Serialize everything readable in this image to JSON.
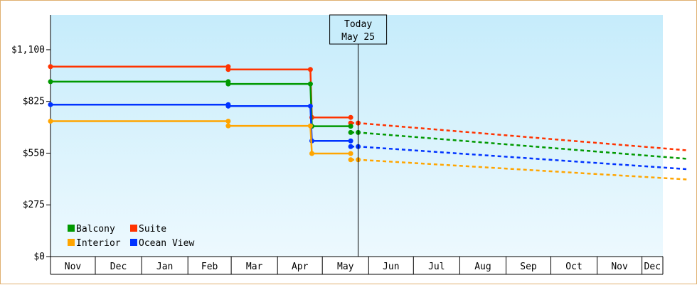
{
  "chart_data": {
    "type": "line",
    "title": "",
    "xlabel": "",
    "ylabel": "",
    "ylim": [
      0,
      1285
    ],
    "yticks": [
      {
        "value": 0,
        "label": "$0"
      },
      {
        "value": 275,
        "label": "$275"
      },
      {
        "value": 550,
        "label": "$550"
      },
      {
        "value": 825,
        "label": "$825"
      },
      {
        "value": 1100,
        "label": "$1,100"
      }
    ],
    "x_axis_months": [
      "Nov",
      "Dec",
      "Jan",
      "Feb",
      "Mar",
      "Apr",
      "May",
      "Jun",
      "Jul",
      "Aug",
      "Sep",
      "Oct",
      "Nov",
      "Dec"
    ],
    "today_marker": {
      "line1": "Today",
      "line2": "May 25",
      "date": "2024-05-25"
    },
    "legend_position": "bottom-left",
    "series": [
      {
        "name": "Suite",
        "color": "#ff3300",
        "history": [
          {
            "date": "2023-11-01",
            "value": 1010
          },
          {
            "date": "2024-02-28",
            "value": 1010
          },
          {
            "date": "2024-02-28",
            "value": 995
          },
          {
            "date": "2024-04-23",
            "value": 995
          },
          {
            "date": "2024-04-24",
            "value": 740
          },
          {
            "date": "2024-05-20",
            "value": 740
          }
        ],
        "forecast": [
          {
            "date": "2024-05-20",
            "value": 710
          },
          {
            "date": "2024-05-25",
            "value": 710
          },
          {
            "date": "2024-12-31",
            "value": 565
          }
        ]
      },
      {
        "name": "Balcony",
        "color": "#009900",
        "history": [
          {
            "date": "2023-11-01",
            "value": 930
          },
          {
            "date": "2024-02-28",
            "value": 930
          },
          {
            "date": "2024-02-28",
            "value": 918
          },
          {
            "date": "2024-04-23",
            "value": 918
          },
          {
            "date": "2024-04-24",
            "value": 693
          },
          {
            "date": "2024-05-20",
            "value": 693
          }
        ],
        "forecast": [
          {
            "date": "2024-05-20",
            "value": 660
          },
          {
            "date": "2024-05-25",
            "value": 660
          },
          {
            "date": "2024-12-31",
            "value": 520
          }
        ]
      },
      {
        "name": "Ocean View",
        "color": "#0033ff",
        "history": [
          {
            "date": "2023-11-01",
            "value": 808
          },
          {
            "date": "2024-02-28",
            "value": 808
          },
          {
            "date": "2024-02-28",
            "value": 800
          },
          {
            "date": "2024-04-23",
            "value": 800
          },
          {
            "date": "2024-04-24",
            "value": 615
          },
          {
            "date": "2024-05-20",
            "value": 615
          }
        ],
        "forecast": [
          {
            "date": "2024-05-20",
            "value": 585
          },
          {
            "date": "2024-05-25",
            "value": 585
          },
          {
            "date": "2024-12-31",
            "value": 465
          }
        ]
      },
      {
        "name": "Interior",
        "color": "#ffa500",
        "history": [
          {
            "date": "2023-11-01",
            "value": 720
          },
          {
            "date": "2024-02-28",
            "value": 720
          },
          {
            "date": "2024-02-28",
            "value": 695
          },
          {
            "date": "2024-04-23",
            "value": 695
          },
          {
            "date": "2024-04-24",
            "value": 548
          },
          {
            "date": "2024-05-20",
            "value": 548
          }
        ],
        "forecast": [
          {
            "date": "2024-05-20",
            "value": 515
          },
          {
            "date": "2024-05-25",
            "value": 515
          },
          {
            "date": "2024-12-31",
            "value": 410
          }
        ]
      }
    ],
    "legend": [
      {
        "series": "Balcony"
      },
      {
        "series": "Suite"
      },
      {
        "series": "Interior"
      },
      {
        "series": "Ocean View"
      }
    ]
  }
}
